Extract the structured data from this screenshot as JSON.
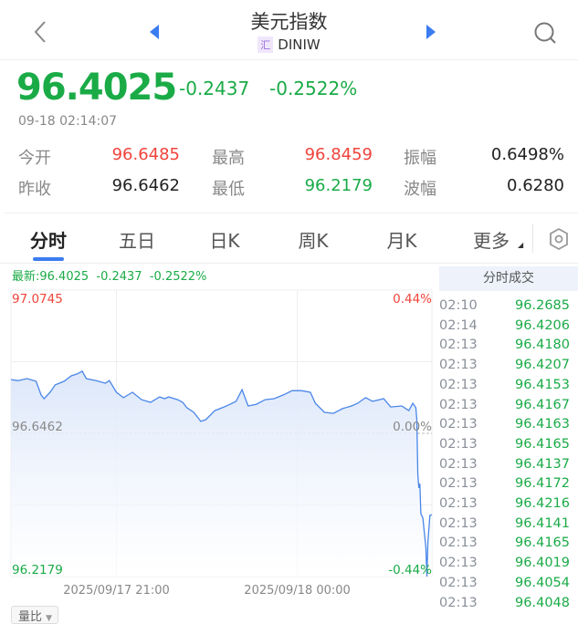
{
  "header": {
    "title": "美元指数",
    "badge": "汇",
    "code": "DINIW",
    "icons": [
      "chevron-left-icon",
      "prev-triangle-icon",
      "next-triangle-icon",
      "search-icon"
    ]
  },
  "quote": {
    "price": "96.4025",
    "change": "-0.2437",
    "change_pct": "-0.2522%",
    "time": "09-18 02:14:07"
  },
  "stats": [
    {
      "label": "今开",
      "value": "96.6485",
      "color": "#f0443b"
    },
    {
      "label": "最高",
      "value": "96.8459",
      "color": "#f0443b"
    },
    {
      "label": "振幅",
      "value": "0.6498%",
      "color": "#222222"
    },
    {
      "label": "昨收",
      "value": "96.6462",
      "color": "#222222"
    },
    {
      "label": "最低",
      "value": "96.2179",
      "color": "#1aab47"
    },
    {
      "label": "波幅",
      "value": "0.6280",
      "color": "#222222"
    }
  ],
  "tabs": [
    {
      "label": "分时",
      "active": true
    },
    {
      "label": "五日"
    },
    {
      "label": "日K"
    },
    {
      "label": "周K"
    },
    {
      "label": "月K"
    },
    {
      "label": "更多"
    }
  ],
  "latest": "最新:96.4025  -0.2437  -0.2522%",
  "volume_button": "量比",
  "trades": {
    "title": "分时成交",
    "rows": [
      [
        "02:10",
        "96.2685"
      ],
      [
        "02:14",
        "96.4206"
      ],
      [
        "02:13",
        "96.4180"
      ],
      [
        "02:13",
        "96.4207"
      ],
      [
        "02:13",
        "96.4153"
      ],
      [
        "02:13",
        "96.4167"
      ],
      [
        "02:13",
        "96.4163"
      ],
      [
        "02:13",
        "96.4165"
      ],
      [
        "02:13",
        "96.4137"
      ],
      [
        "02:13",
        "96.4172"
      ],
      [
        "02:13",
        "96.4216"
      ],
      [
        "02:13",
        "96.4141"
      ],
      [
        "02:13",
        "96.4165"
      ],
      [
        "02:13",
        "96.4019"
      ],
      [
        "02:13",
        "96.4054"
      ],
      [
        "02:13",
        "96.4048"
      ]
    ]
  },
  "colors": {
    "line": "#4a86e8",
    "up": "#f0443b",
    "down": "#1aab47",
    "accent": "#3b7cf0"
  },
  "chart_data": {
    "type": "area",
    "ylim": [
      96.2179,
      97.0745
    ],
    "baseline": 96.6462,
    "left_labels": [
      "97.0745",
      "96.6462",
      "96.2179"
    ],
    "right_labels": [
      "0.44%",
      "0.00%",
      "-0.44%"
    ],
    "x_tick_labels": [
      "2025/09/17 21:00",
      "2025/09/18 00:00"
    ],
    "x_ticks": [
      "09-17 21:00",
      "09-18 00:00"
    ],
    "xlim": [
      "09-17 19:15",
      "09-18 02:14"
    ],
    "grid": true,
    "points": [
      [
        "09-17 19:15",
        96.807
      ],
      [
        "09-17 19:22",
        96.804
      ],
      [
        "09-17 19:31",
        96.81
      ],
      [
        "09-17 19:40",
        96.802
      ],
      [
        "09-17 19:45",
        96.761
      ],
      [
        "09-17 19:48",
        96.75
      ],
      [
        "09-17 19:54",
        96.769
      ],
      [
        "09-17 19:59",
        96.791
      ],
      [
        "09-17 20:08",
        96.802
      ],
      [
        "09-17 20:15",
        96.818
      ],
      [
        "09-17 20:21",
        96.824
      ],
      [
        "09-17 20:26",
        96.832
      ],
      [
        "09-17 20:30",
        96.81
      ],
      [
        "09-17 20:40",
        96.804
      ],
      [
        "09-17 20:49",
        96.796
      ],
      [
        "09-17 20:53",
        96.804
      ],
      [
        "09-17 21:00",
        96.769
      ],
      [
        "09-17 21:07",
        96.753
      ],
      [
        "09-17 21:16",
        96.769
      ],
      [
        "09-17 21:25",
        96.747
      ],
      [
        "09-17 21:34",
        96.739
      ],
      [
        "09-17 21:43",
        96.755
      ],
      [
        "09-17 21:48",
        96.75
      ],
      [
        "09-17 21:52",
        96.755
      ],
      [
        "09-17 22:01",
        96.747
      ],
      [
        "09-17 22:06",
        96.739
      ],
      [
        "09-17 22:10",
        96.723
      ],
      [
        "09-17 22:17",
        96.709
      ],
      [
        "09-17 22:24",
        96.682
      ],
      [
        "09-17 22:29",
        96.687
      ],
      [
        "09-17 22:38",
        96.714
      ],
      [
        "09-17 22:47",
        96.725
      ],
      [
        "09-17 22:53",
        96.733
      ],
      [
        "09-17 22:59",
        96.742
      ],
      [
        "09-17 23:05",
        96.777
      ],
      [
        "09-17 23:11",
        96.728
      ],
      [
        "09-17 23:19",
        96.733
      ],
      [
        "09-17 23:28",
        96.747
      ],
      [
        "09-17 23:37",
        96.75
      ],
      [
        "09-17 23:46",
        96.761
      ],
      [
        "09-17 23:55",
        96.774
      ],
      [
        "09-18 00:04",
        96.774
      ],
      [
        "09-18 00:13",
        96.769
      ],
      [
        "09-18 00:18",
        96.736
      ],
      [
        "09-18 00:27",
        96.709
      ],
      [
        "09-18 00:36",
        96.706
      ],
      [
        "09-18 00:45",
        96.72
      ],
      [
        "09-18 00:54",
        96.728
      ],
      [
        "09-18 01:00",
        96.736
      ],
      [
        "09-18 01:08",
        96.753
      ],
      [
        "09-18 01:15",
        96.742
      ],
      [
        "09-18 01:26",
        96.75
      ],
      [
        "09-18 01:33",
        96.725
      ],
      [
        "09-18 01:44",
        96.728
      ],
      [
        "09-18 01:51",
        96.714
      ],
      [
        "09-18 01:55",
        96.736
      ],
      [
        "09-18 01:58",
        96.723
      ],
      [
        "09-18 01:59",
        96.687
      ],
      [
        "09-18 02:00",
        96.523
      ],
      [
        "09-18 02:01",
        96.483
      ],
      [
        "09-18 02:02",
        96.496
      ],
      [
        "09-18 02:03",
        96.406
      ],
      [
        "09-18 02:05",
        96.393
      ],
      [
        "09-18 02:08",
        96.305
      ],
      [
        "09-18 02:09",
        96.2179
      ],
      [
        "09-18 02:10",
        96.319
      ],
      [
        "09-18 02:12",
        96.401
      ],
      [
        "09-18 02:14",
        96.4025
      ]
    ]
  }
}
